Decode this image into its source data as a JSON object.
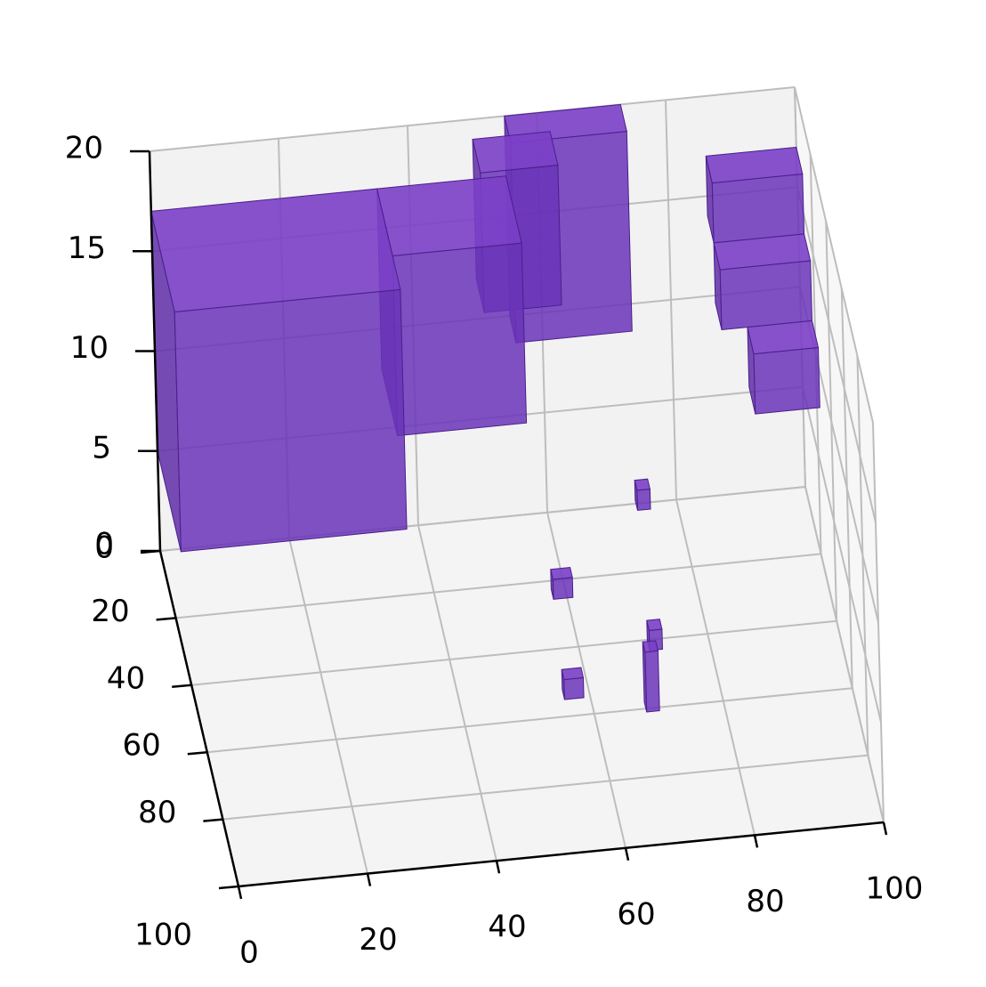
{
  "chart_data": {
    "type": "voxel",
    "title": "",
    "xlabel": "",
    "ylabel": "",
    "zlabel": "",
    "xlim": [
      0,
      100
    ],
    "ylim": [
      0,
      100
    ],
    "zlim": [
      0,
      20
    ],
    "x_ticks": [
      "0",
      "20",
      "40",
      "60",
      "80",
      "100"
    ],
    "y_ticks": [
      "0",
      "20",
      "40",
      "60",
      "80",
      "100"
    ],
    "z_ticks": [
      "0",
      "5",
      "10",
      "15",
      "20"
    ],
    "grid": true,
    "legend": "none",
    "voxel_color": "#7b3fc8",
    "voxel_edge_color": "#4b1f8c",
    "voxels": [
      {
        "x": [
          0,
          35
        ],
        "y": [
          0,
          30
        ],
        "z": [
          5,
          17
        ]
      },
      {
        "x": [
          35,
          55
        ],
        "y": [
          0,
          20
        ],
        "z": [
          8,
          17
        ]
      },
      {
        "x": [
          55,
          73
        ],
        "y": [
          0,
          8
        ],
        "z": [
          10,
          20
        ]
      },
      {
        "x": [
          50,
          62
        ],
        "y": [
          0,
          10
        ],
        "z": [
          12,
          19
        ]
      },
      {
        "x": [
          86,
          100
        ],
        "y": [
          0,
          8
        ],
        "z": [
          14,
          17
        ]
      },
      {
        "x": [
          86,
          100
        ],
        "y": [
          8,
          16
        ],
        "z": [
          11,
          14
        ]
      },
      {
        "x": [
          90,
          100
        ],
        "y": [
          16,
          24
        ],
        "z": [
          8,
          11
        ]
      },
      {
        "x": [
          70,
          72
        ],
        "y": [
          34,
          37
        ],
        "z": [
          6,
          7
        ]
      },
      {
        "x": [
          56,
          59
        ],
        "y": [
          40,
          43
        ],
        "z": [
          3,
          4
        ]
      },
      {
        "x": [
          70,
          72
        ],
        "y": [
          46,
          49
        ],
        "z": [
          1,
          2
        ]
      },
      {
        "x": [
          56,
          59
        ],
        "y": [
          52,
          55
        ],
        "z": [
          0,
          1
        ]
      },
      {
        "x": [
          68,
          70
        ],
        "y": [
          58,
          61
        ],
        "z": [
          0,
          3
        ]
      }
    ]
  },
  "colors": {
    "pane_back": "#f2f2f2",
    "pane_side": "#f7f7f7",
    "pane_floor": "#f4f4f4",
    "grid": "#bdbdbd",
    "axis": "#000000"
  }
}
